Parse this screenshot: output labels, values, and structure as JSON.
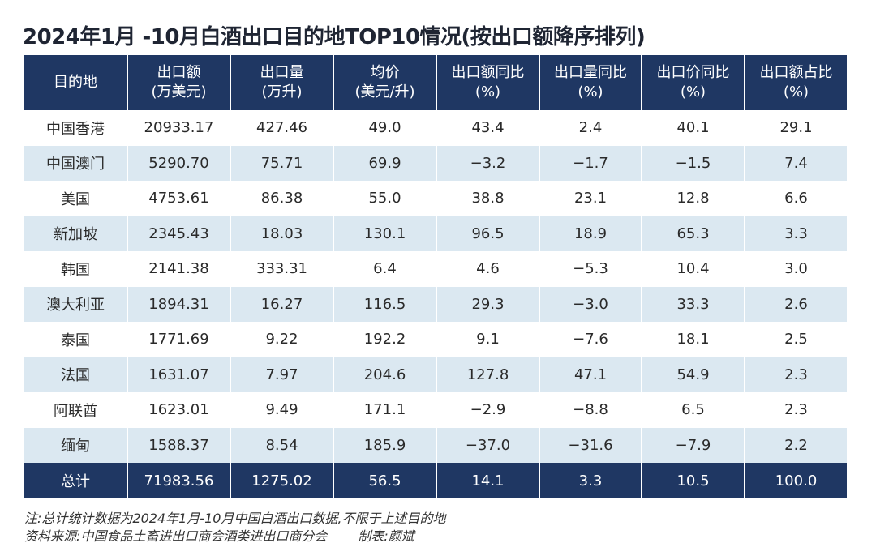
{
  "title": "2024年1月 -10月白酒出口目的地TOP10情况(按出口额降序排列)",
  "headers": [
    {
      "line1": "目的地",
      "line2": ""
    },
    {
      "line1": "出口额",
      "line2": "(万美元)"
    },
    {
      "line1": "出口量",
      "line2": "(万升)"
    },
    {
      "line1": "均价",
      "line2": "(美元/升)"
    },
    {
      "line1": "出口额同比",
      "line2": "(%)"
    },
    {
      "line1": "出口量同比",
      "line2": "(%)"
    },
    {
      "line1": "出口价同比",
      "line2": "(%)"
    },
    {
      "line1": "出口额占比",
      "line2": "(%)"
    }
  ],
  "rows": [
    [
      "中国香港",
      "20933.17",
      "427.46",
      "49.0",
      "43.4",
      "2.4",
      "40.1",
      "29.1"
    ],
    [
      "中国澳门",
      "5290.70",
      "75.71",
      "69.9",
      "−3.2",
      "−1.7",
      "−1.5",
      "7.4"
    ],
    [
      "美国",
      "4753.61",
      "86.38",
      "55.0",
      "38.8",
      "23.1",
      "12.8",
      "6.6"
    ],
    [
      "新加坡",
      "2345.43",
      "18.03",
      "130.1",
      "96.5",
      "18.9",
      "65.3",
      "3.3"
    ],
    [
      "韩国",
      "2141.38",
      "333.31",
      "6.4",
      "4.6",
      "−5.3",
      "10.4",
      "3.0"
    ],
    [
      "澳大利亚",
      "1894.31",
      "16.27",
      "116.5",
      "29.3",
      "−3.0",
      "33.3",
      "2.6"
    ],
    [
      "泰国",
      "1771.69",
      "9.22",
      "192.2",
      "9.1",
      "−7.6",
      "18.1",
      "2.5"
    ],
    [
      "法国",
      "1631.07",
      "7.97",
      "204.6",
      "127.8",
      "47.1",
      "54.9",
      "2.3"
    ],
    [
      "阿联酋",
      "1623.01",
      "9.49",
      "171.1",
      "−2.9",
      "−8.8",
      "6.5",
      "2.3"
    ],
    [
      "缅甸",
      "1588.37",
      "8.54",
      "185.9",
      "−37.0",
      "−31.6",
      "−7.9",
      "2.2"
    ]
  ],
  "total": [
    "总计",
    "71983.56",
    "1275.02",
    "56.5",
    "14.1",
    "3.3",
    "10.5",
    "100.0"
  ],
  "note": "注:总计统计数据为2024年1月-10月中国白酒出口数据,不限于上述目的地",
  "source": "资料来源:中国食品土畜进出口商会酒类进出口商分会",
  "credit": "制表:颜斌",
  "colors": {
    "header_bg": "#1f3763",
    "stripe_bg": "#dbe8f1",
    "header_text": "#ffffff"
  }
}
